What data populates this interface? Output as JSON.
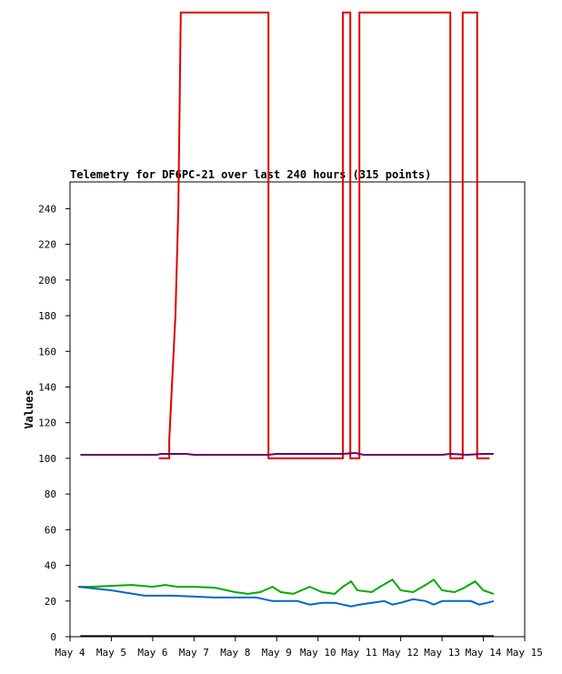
{
  "chart_data": {
    "type": "line",
    "title": "Telemetry for DF6PC-21 over last 240 hours (315 points)",
    "xlabel": "",
    "ylabel": "Values",
    "x_tick_labels": [
      "May 4",
      "May 5",
      "May 6",
      "May 7",
      "May 8",
      "May 9",
      "May 10",
      "May 11",
      "May 12",
      "May 13",
      "May 14",
      "May 15"
    ],
    "xlim": [
      4,
      15
    ],
    "y_ticks": [
      0,
      20,
      40,
      60,
      80,
      100,
      120,
      140,
      160,
      180,
      200,
      220,
      240
    ],
    "ylim": [
      0,
      255
    ],
    "grid": false,
    "legend": "none",
    "series": [
      {
        "color": "#dd0000",
        "points": [
          [
            6.15,
            100
          ],
          [
            6.4,
            100
          ],
          [
            6.4,
            110
          ],
          [
            6.55,
            180
          ],
          [
            6.62,
            240
          ],
          [
            6.68,
            350
          ],
          [
            8.8,
            350
          ],
          [
            8.8,
            100
          ],
          [
            10.6,
            100
          ],
          [
            10.6,
            350
          ],
          [
            10.78,
            350
          ],
          [
            10.78,
            100
          ],
          [
            11.0,
            100
          ],
          [
            11.0,
            350
          ],
          [
            13.2,
            350
          ],
          [
            13.2,
            100
          ],
          [
            13.5,
            100
          ],
          [
            13.5,
            350
          ],
          [
            13.85,
            350
          ],
          [
            13.85,
            100
          ],
          [
            14.15,
            100
          ]
        ]
      },
      {
        "color": "#660066",
        "points": [
          [
            4.25,
            102
          ],
          [
            6.1,
            102
          ],
          [
            6.2,
            102.5
          ],
          [
            6.8,
            102.5
          ],
          [
            7.0,
            102
          ],
          [
            8.8,
            102
          ],
          [
            9.0,
            102.5
          ],
          [
            10.6,
            102.5
          ],
          [
            10.9,
            103
          ],
          [
            11.1,
            102
          ],
          [
            13.0,
            102
          ],
          [
            13.2,
            102.5
          ],
          [
            13.6,
            102
          ],
          [
            14.0,
            102.5
          ],
          [
            14.25,
            102.5
          ]
        ]
      },
      {
        "color": "#00aa00",
        "points": [
          [
            4.2,
            28
          ],
          [
            4.5,
            28
          ],
          [
            5.0,
            28.5
          ],
          [
            5.5,
            29
          ],
          [
            6.0,
            28
          ],
          [
            6.3,
            29
          ],
          [
            6.6,
            28
          ],
          [
            7.0,
            28
          ],
          [
            7.5,
            27.5
          ],
          [
            8.0,
            25
          ],
          [
            8.3,
            24
          ],
          [
            8.6,
            25
          ],
          [
            8.9,
            28
          ],
          [
            9.1,
            25
          ],
          [
            9.4,
            24
          ],
          [
            9.8,
            28
          ],
          [
            10.1,
            25
          ],
          [
            10.4,
            24
          ],
          [
            10.6,
            28
          ],
          [
            10.8,
            31
          ],
          [
            10.95,
            26
          ],
          [
            11.3,
            25
          ],
          [
            11.5,
            28
          ],
          [
            11.8,
            32
          ],
          [
            12.0,
            26
          ],
          [
            12.3,
            25
          ],
          [
            12.6,
            29
          ],
          [
            12.8,
            32
          ],
          [
            13.0,
            26
          ],
          [
            13.3,
            25
          ],
          [
            13.5,
            27
          ],
          [
            13.8,
            31
          ],
          [
            14.0,
            26
          ],
          [
            14.25,
            24
          ]
        ]
      },
      {
        "color": "#0066cc",
        "points": [
          [
            4.2,
            28
          ],
          [
            5.0,
            26
          ],
          [
            5.8,
            23
          ],
          [
            6.5,
            23
          ],
          [
            7.0,
            22.5
          ],
          [
            7.5,
            22
          ],
          [
            8.0,
            22
          ],
          [
            8.5,
            22
          ],
          [
            8.9,
            20
          ],
          [
            9.5,
            20
          ],
          [
            9.8,
            18
          ],
          [
            10.1,
            19
          ],
          [
            10.4,
            19
          ],
          [
            10.6,
            18
          ],
          [
            10.8,
            17
          ],
          [
            11.0,
            18
          ],
          [
            11.3,
            19
          ],
          [
            11.6,
            20
          ],
          [
            11.8,
            18
          ],
          [
            12.0,
            19
          ],
          [
            12.3,
            21
          ],
          [
            12.6,
            20
          ],
          [
            12.8,
            18
          ],
          [
            13.0,
            20
          ],
          [
            13.4,
            20
          ],
          [
            13.7,
            20
          ],
          [
            13.9,
            18
          ],
          [
            14.1,
            19
          ],
          [
            14.25,
            20
          ]
        ]
      },
      {
        "color": "#000000",
        "points": [
          [
            4.25,
            0.3
          ],
          [
            14.25,
            0.3
          ]
        ]
      }
    ]
  }
}
